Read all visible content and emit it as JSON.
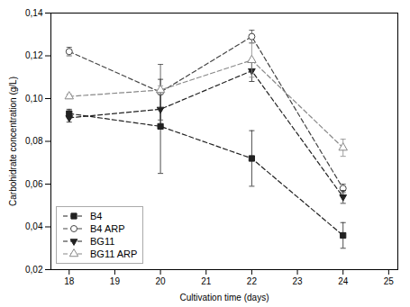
{
  "chart_data": {
    "type": "line",
    "x": [
      18,
      20,
      22,
      24
    ],
    "series": [
      {
        "name": "B4",
        "color": "#222222",
        "marker": "square",
        "line_style": "dashed",
        "values": [
          0.093,
          0.087,
          0.072,
          0.036
        ],
        "yerr": [
          0.002,
          0.022,
          0.013,
          0.006
        ]
      },
      {
        "name": "B4 ARP",
        "color": "#444444",
        "marker": "circle-open",
        "line_style": "dashed",
        "values": [
          0.122,
          0.103,
          0.129,
          0.058
        ],
        "yerr": [
          0.002,
          0.013,
          0.003,
          0.002
        ]
      },
      {
        "name": "BG11",
        "color": "#222222",
        "marker": "triangle-down",
        "line_style": "dashed",
        "values": [
          0.091,
          0.095,
          0.113,
          0.054
        ],
        "yerr": [
          0.002,
          0.008,
          0.005,
          0.003
        ]
      },
      {
        "name": "BG11 ARP",
        "color": "#888888",
        "marker": "triangle-up-open",
        "line_style": "dashed",
        "values": [
          0.101,
          0.104,
          0.118,
          0.077
        ],
        "yerr": [
          0.001,
          0.002,
          0.008,
          0.004
        ]
      }
    ],
    "xlabel": "Cultivation time (days)",
    "ylabel": "Carbohidrate concentration (g/L)",
    "xlim": [
      17.6,
      25.2
    ],
    "ylim": [
      0.02,
      0.14
    ],
    "xticks": [
      18,
      19,
      20,
      21,
      22,
      23,
      24,
      25
    ],
    "yticks": [
      {
        "value": 0.02,
        "label": "0,02"
      },
      {
        "value": 0.04,
        "label": "0,04"
      },
      {
        "value": 0.06,
        "label": "0,06"
      },
      {
        "value": 0.08,
        "label": "0,08"
      },
      {
        "value": 0.1,
        "label": "0,10"
      },
      {
        "value": 0.12,
        "label": "0,12"
      },
      {
        "value": 0.14,
        "label": "0,14"
      }
    ],
    "grid": false,
    "legend": "lower left"
  }
}
